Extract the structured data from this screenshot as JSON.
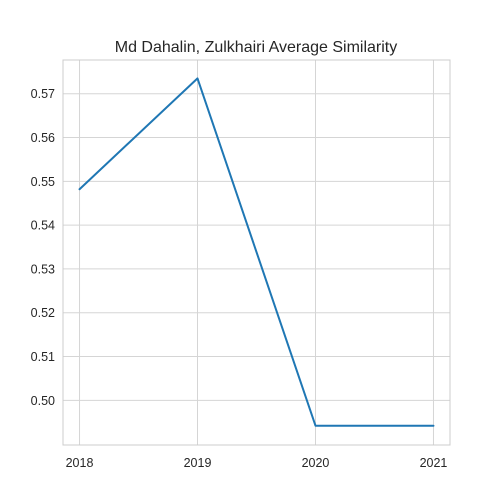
{
  "chart_data": {
    "type": "line",
    "title": "Md Dahalin, Zulkhairi Average Similarity",
    "xlabel": "",
    "ylabel": "",
    "x": [
      2018,
      2019,
      2020,
      2021
    ],
    "x_tick_labels": [
      "2018",
      "2019",
      "2020",
      "2021"
    ],
    "y_ticks": [
      0.5,
      0.51,
      0.52,
      0.53,
      0.54,
      0.55,
      0.56,
      0.57
    ],
    "y_tick_labels": [
      "0.50",
      "0.51",
      "0.52",
      "0.53",
      "0.54",
      "0.55",
      "0.56",
      "0.57"
    ],
    "xlim": [
      2017.86,
      2021.14
    ],
    "ylim": [
      0.4898,
      0.5777
    ],
    "grid": true,
    "series": [
      {
        "values": [
          0.5482,
          0.5735,
          0.4942,
          0.4942
        ],
        "color": "#1f77b4"
      }
    ]
  }
}
